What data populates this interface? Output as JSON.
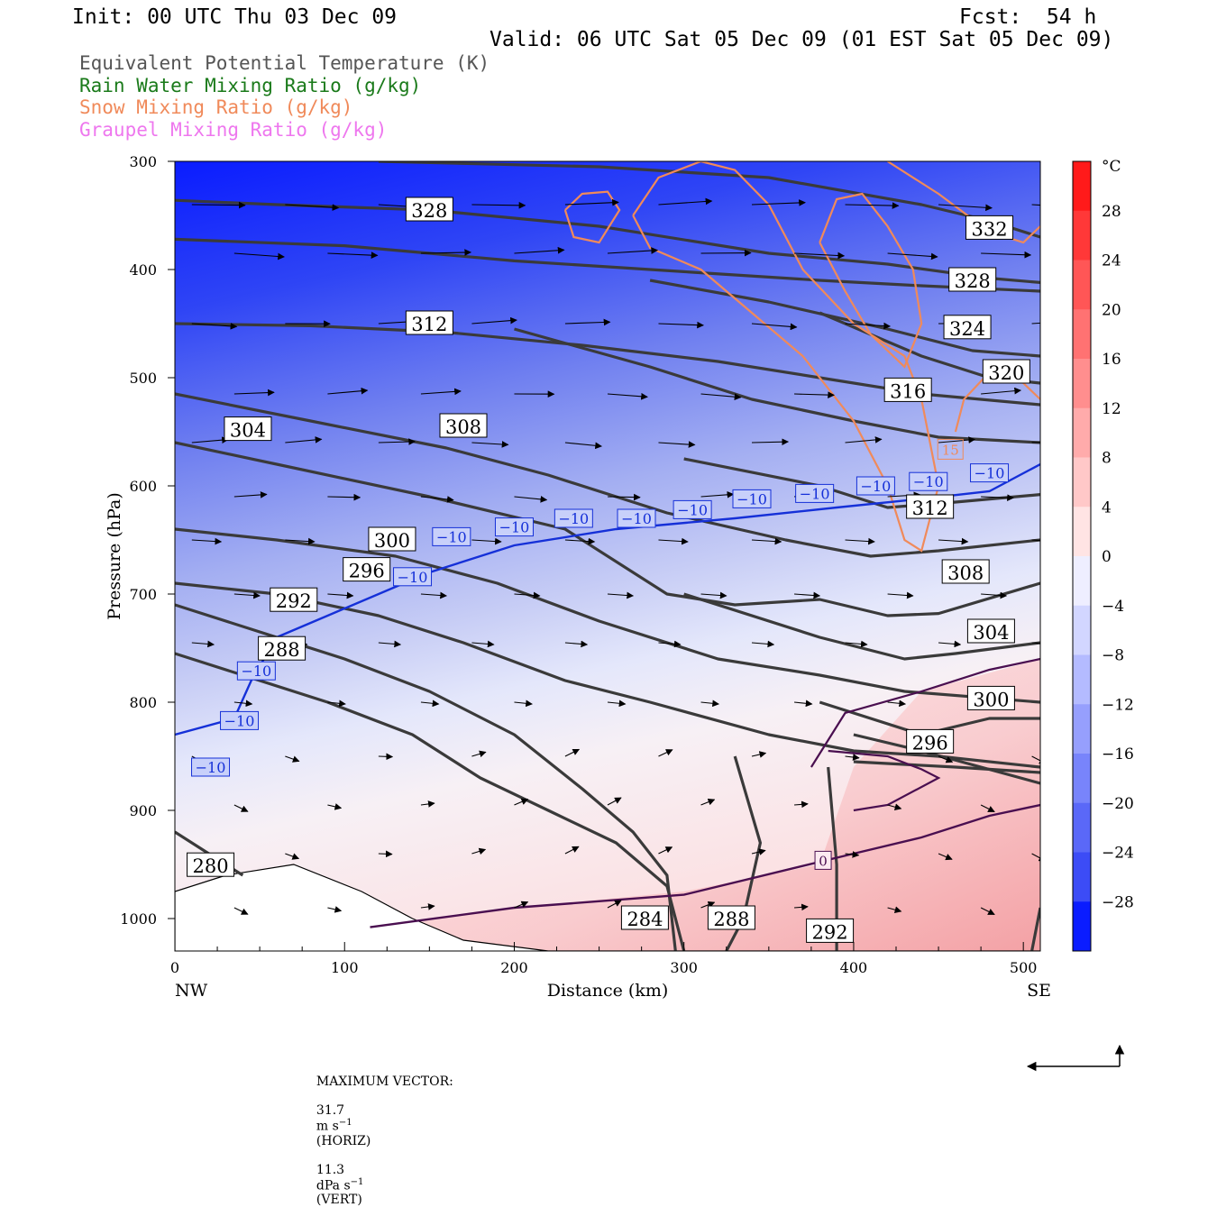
{
  "header": {
    "init": "Init: 00 UTC Thu 03 Dec 09",
    "fcst": "Fcst:  54 h",
    "valid": "Valid: 06 UTC Sat 05 Dec 09 (01 EST Sat 05 Dec 09)"
  },
  "legend": [
    {
      "text": "Equivalent Potential Temperature (K)",
      "color": "#555555"
    },
    {
      "text": "Rain Water Mixing Ratio (g/kg)",
      "color": "#1a7a1a"
    },
    {
      "text": "Snow Mixing Ratio (g/kg)",
      "color": "#f08a5a"
    },
    {
      "text": "Graupel Mixing Ratio (g/kg)",
      "color": "#ee77ee"
    }
  ],
  "chart_data": {
    "type": "contour",
    "xlabel": "Distance (km)",
    "ylabel": "Pressure (hPa)",
    "xlim": [
      0,
      510
    ],
    "ylim": [
      1030,
      300
    ],
    "x_ticks": [
      0,
      100,
      200,
      300,
      400,
      500
    ],
    "y_ticks": [
      300,
      400,
      500,
      600,
      700,
      800,
      900,
      1000
    ],
    "x_end_labels": {
      "left": "NW",
      "right": "SE"
    },
    "colorbar": {
      "unit": "°C",
      "labels": [
        28,
        24,
        20,
        16,
        12,
        8,
        4,
        0,
        -4,
        -8,
        -12,
        -16,
        -20,
        -24,
        -28
      ]
    },
    "theta_e_contours": [
      {
        "value": "328",
        "points": [
          [
            0,
            336
          ],
          [
            60,
            340
          ],
          [
            150,
            345
          ],
          [
            250,
            360
          ],
          [
            350,
            385
          ],
          [
            420,
            395
          ],
          [
            480,
            408
          ],
          [
            510,
            412
          ]
        ],
        "label_at": [
          150,
          345
        ]
      },
      {
        "value": "332",
        "points": [
          [
            120,
            300
          ],
          [
            250,
            305
          ],
          [
            350,
            315
          ],
          [
            440,
            340
          ],
          [
            480,
            355
          ],
          [
            510,
            370
          ]
        ],
        "label_at": [
          480,
          362
        ]
      },
      {
        "value": "328",
        "points": [
          [
            0,
            372
          ],
          [
            100,
            378
          ],
          [
            200,
            392
          ],
          [
            300,
            402
          ],
          [
            380,
            410
          ],
          [
            440,
            415
          ],
          [
            510,
            420
          ]
        ],
        "label_at": [
          470,
          410
        ]
      },
      {
        "value": "312",
        "points": [
          [
            0,
            450
          ],
          [
            80,
            452
          ],
          [
            160,
            458
          ],
          [
            240,
            470
          ],
          [
            320,
            485
          ],
          [
            380,
            500
          ],
          [
            440,
            515
          ],
          [
            510,
            525
          ]
        ],
        "label_at": [
          150,
          450
        ]
      },
      {
        "value": "324",
        "points": [
          [
            280,
            410
          ],
          [
            350,
            430
          ],
          [
            420,
            455
          ],
          [
            470,
            475
          ],
          [
            510,
            480
          ]
        ],
        "label_at": [
          467,
          454
        ]
      },
      {
        "value": "320",
        "points": [
          [
            380,
            440
          ],
          [
            440,
            480
          ],
          [
            480,
            500
          ],
          [
            510,
            505
          ]
        ],
        "label_at": [
          490,
          495
        ]
      },
      {
        "value": "316",
        "points": [
          [
            200,
            455
          ],
          [
            280,
            490
          ],
          [
            340,
            520
          ],
          [
            400,
            540
          ],
          [
            450,
            555
          ],
          [
            510,
            560
          ]
        ],
        "label_at": [
          432,
          512
        ]
      },
      {
        "value": "308",
        "points": [
          [
            0,
            515
          ],
          [
            80,
            540
          ],
          [
            160,
            565
          ],
          [
            220,
            590
          ],
          [
            290,
            625
          ],
          [
            360,
            650
          ],
          [
            410,
            665
          ],
          [
            450,
            660
          ],
          [
            510,
            650
          ]
        ],
        "label_at": [
          170,
          545
        ]
      },
      {
        "value": "312",
        "points": [
          [
            300,
            575
          ],
          [
            380,
            600
          ],
          [
            420,
            620
          ],
          [
            460,
            615
          ],
          [
            510,
            608
          ]
        ],
        "label_at": [
          445,
          620
        ]
      },
      {
        "value": "304",
        "points": [
          [
            0,
            560
          ],
          [
            60,
            580
          ],
          [
            150,
            610
          ],
          [
            230,
            640
          ],
          [
            290,
            700
          ],
          [
            330,
            710
          ],
          [
            380,
            705
          ],
          [
            420,
            720
          ],
          [
            450,
            718
          ],
          [
            510,
            690
          ]
        ],
        "label_at": [
          43,
          548
        ]
      },
      {
        "value": "308",
        "points": [
          [
            300,
            700
          ],
          [
            380,
            740
          ],
          [
            430,
            760
          ],
          [
            460,
            755
          ],
          [
            510,
            745
          ]
        ],
        "label_at": [
          466,
          680
        ]
      },
      {
        "value": "300",
        "points": [
          [
            0,
            640
          ],
          [
            60,
            650
          ],
          [
            130,
            665
          ],
          [
            190,
            690
          ],
          [
            250,
            725
          ],
          [
            320,
            760
          ],
          [
            380,
            775
          ],
          [
            430,
            790
          ],
          [
            510,
            800
          ]
        ],
        "label_at": [
          128,
          650
        ]
      },
      {
        "value": "304",
        "points": [
          [
            380,
            800
          ],
          [
            440,
            830
          ],
          [
            480,
            815
          ],
          [
            510,
            815
          ]
        ],
        "label_at": [
          481,
          735
        ]
      },
      {
        "value": "296",
        "points": [
          [
            0,
            690
          ],
          [
            60,
            700
          ],
          [
            120,
            720
          ],
          [
            170,
            745
          ],
          [
            230,
            780
          ],
          [
            280,
            800
          ],
          [
            350,
            830
          ],
          [
            400,
            845
          ],
          [
            450,
            850
          ],
          [
            510,
            860
          ]
        ],
        "label_at": [
          113,
          678
        ]
      },
      {
        "value": "300",
        "points": [
          [
            400,
            855
          ],
          [
            460,
            860
          ],
          [
            510,
            865
          ]
        ],
        "label_at": [
          481,
          797
        ]
      },
      {
        "value": "292",
        "points": [
          [
            0,
            710
          ],
          [
            50,
            735
          ],
          [
            100,
            760
          ],
          [
            150,
            790
          ],
          [
            200,
            830
          ],
          [
            240,
            880
          ],
          [
            270,
            920
          ],
          [
            290,
            960
          ],
          [
            295,
            1030
          ]
        ],
        "label_at": [
          70,
          706
        ]
      },
      {
        "value": "296",
        "points": [
          [
            400,
            830
          ],
          [
            440,
            845
          ],
          [
            510,
            875
          ]
        ],
        "label_at": [
          445,
          837
        ]
      },
      {
        "value": "288",
        "points": [
          [
            0,
            755
          ],
          [
            40,
            775
          ],
          [
            90,
            800
          ],
          [
            140,
            830
          ],
          [
            180,
            870
          ],
          [
            220,
            900
          ],
          [
            260,
            930
          ],
          [
            290,
            970
          ],
          [
            300,
            1030
          ]
        ],
        "label_at": [
          63,
          751
        ]
      },
      {
        "value": "284",
        "points": [
          [
            330,
            850
          ],
          [
            345,
            930
          ],
          [
            335,
            1000
          ],
          [
            325,
            1030
          ]
        ],
        "label_at": [
          277,
          1000
        ]
      },
      {
        "value": "288",
        "points": [
          [
            385,
            860
          ],
          [
            390,
            950
          ],
          [
            390,
            1030
          ]
        ],
        "label_at": [
          328,
          1000
        ]
      },
      {
        "value": "292",
        "points": [
          [
            510,
            990
          ],
          [
            505,
            1030
          ]
        ],
        "label_at": [
          386,
          1012
        ]
      },
      {
        "value": "280",
        "points": [
          [
            0,
            920
          ],
          [
            20,
            940
          ],
          [
            40,
            960
          ]
        ],
        "label_at": [
          21,
          951
        ]
      }
    ],
    "isotherm_minus10": {
      "value": "−10",
      "points": [
        [
          0,
          830
        ],
        [
          35,
          815
        ],
        [
          45,
          780
        ],
        [
          60,
          740
        ],
        [
          90,
          720
        ],
        [
          150,
          680
        ],
        [
          200,
          655
        ],
        [
          260,
          640
        ],
        [
          330,
          630
        ],
        [
          390,
          620
        ],
        [
          440,
          612
        ],
        [
          480,
          605
        ],
        [
          510,
          580
        ]
      ],
      "labels_at": [
        [
          21,
          860
        ],
        [
          38,
          817
        ],
        [
          48,
          771
        ],
        [
          140,
          684
        ],
        [
          163,
          647
        ],
        [
          200,
          638
        ],
        [
          235,
          630
        ],
        [
          272,
          630
        ],
        [
          305,
          622
        ],
        [
          340,
          612
        ],
        [
          377,
          607
        ],
        [
          413,
          600
        ],
        [
          444,
          596
        ],
        [
          480,
          588
        ]
      ]
    },
    "isotherm_zero": {
      "value": "0",
      "points": [
        [
          115,
          1008
        ],
        [
          200,
          990
        ],
        [
          300,
          978
        ],
        [
          400,
          940
        ],
        [
          440,
          925
        ],
        [
          480,
          905
        ],
        [
          510,
          895
        ]
      ],
      "label_at": [
        382,
        947
      ]
    },
    "freezing_region_upper": {
      "points": [
        [
          375,
          860
        ],
        [
          395,
          810
        ],
        [
          440,
          790
        ],
        [
          480,
          770
        ],
        [
          510,
          760
        ]
      ]
    },
    "snow_contours": [
      {
        "points": [
          [
            230,
            345
          ],
          [
            240,
            330
          ],
          [
            255,
            328
          ],
          [
            262,
            345
          ],
          [
            250,
            375
          ],
          [
            235,
            370
          ],
          [
            230,
            345
          ]
        ]
      },
      {
        "points": [
          [
            270,
            350
          ],
          [
            285,
            315
          ],
          [
            310,
            300
          ],
          [
            330,
            308
          ],
          [
            350,
            340
          ],
          [
            370,
            400
          ],
          [
            400,
            450
          ],
          [
            430,
            480
          ],
          [
            440,
            520
          ],
          [
            450,
            600
          ],
          [
            440,
            660
          ],
          [
            430,
            650
          ],
          [
            420,
            600
          ],
          [
            400,
            540
          ],
          [
            370,
            480
          ],
          [
            340,
            440
          ],
          [
            310,
            400
          ],
          [
            280,
            380
          ],
          [
            270,
            350
          ]
        ]
      },
      {
        "points": [
          [
            380,
            375
          ],
          [
            390,
            335
          ],
          [
            405,
            330
          ],
          [
            420,
            360
          ],
          [
            435,
            400
          ],
          [
            440,
            450
          ],
          [
            430,
            490
          ],
          [
            410,
            460
          ],
          [
            395,
            420
          ],
          [
            380,
            375
          ]
        ]
      },
      {
        "points": [
          [
            420,
            300
          ],
          [
            450,
            330
          ],
          [
            480,
            365
          ],
          [
            500,
            375
          ],
          [
            510,
            360
          ]
        ]
      },
      {
        "points": [
          [
            460,
            550
          ],
          [
            465,
            520
          ],
          [
            480,
            495
          ],
          [
            500,
            505
          ],
          [
            510,
            520
          ]
        ]
      }
    ],
    "snow_labels": [
      {
        "text": "15",
        "at": [
          457,
          567
        ]
      }
    ],
    "vector_caption": {
      "prefix": "MAXIMUM VECTOR:",
      "horiz_value": "31.7",
      "horiz_unit": "m s",
      "horiz_exp": "−1",
      "horiz_tag": "(HORIZ)",
      "vert_value": "11.3",
      "vert_unit": "dPa s",
      "vert_exp": "−1",
      "vert_tag": "(VERT)"
    }
  }
}
